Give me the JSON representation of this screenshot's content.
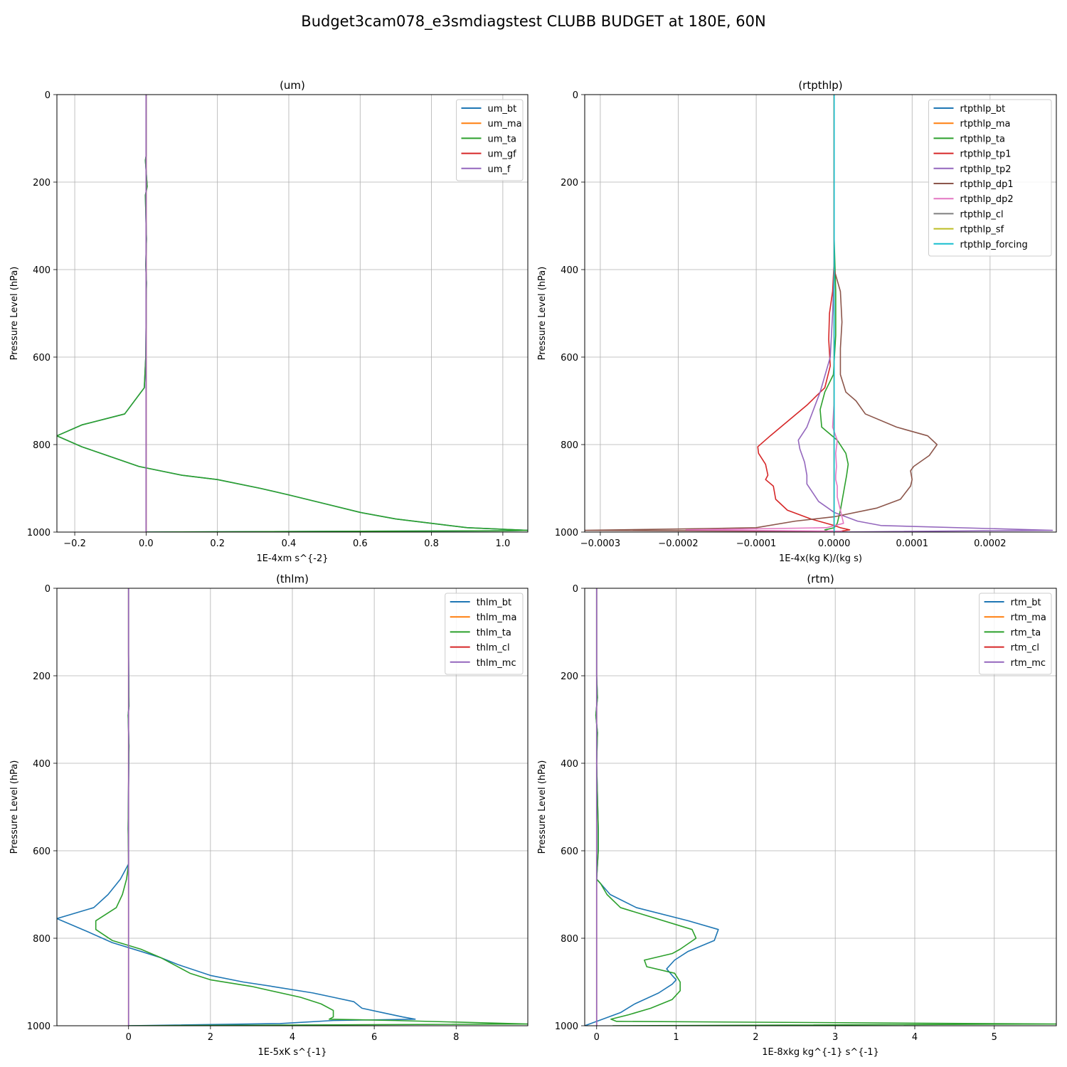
{
  "suptitle": "Budget3cam078_e3smdiagstest CLUBB BUDGET at 180E, 60N",
  "colors": {
    "C0": "#1f77b4",
    "C1": "#ff7f0e",
    "C2": "#2ca02c",
    "C3": "#d62728",
    "C4": "#9467bd",
    "C5": "#8c564b",
    "C6": "#e377c2",
    "C7": "#7f7f7f",
    "C8": "#bcbd22",
    "C9": "#17becf"
  },
  "chart_data": [
    {
      "type": "line",
      "title": "(um)",
      "xlabel": "1E-4xm s^{-2}",
      "ylabel": "Pressure Level (hPa)",
      "xlim": [
        -0.25,
        1.07
      ],
      "ylim": [
        1000,
        0
      ],
      "xticks": [
        -0.2,
        0.0,
        0.2,
        0.4,
        0.6,
        0.8,
        1.0
      ],
      "xtick_labels": [
        "−0.2",
        "0.0",
        "0.2",
        "0.4",
        "0.6",
        "0.8",
        "1.0"
      ],
      "yticks": [
        0,
        200,
        400,
        600,
        800,
        1000
      ],
      "grid": true,
      "legend": "upper right",
      "series": [
        {
          "name": "um_bt",
          "color": "C0",
          "x": [
            0,
            0,
            -0.002,
            0.003,
            -0.002,
            0,
            0.001,
            -0.001,
            0.001,
            0,
            0,
            -0.001,
            -0.005,
            -0.06,
            -0.18,
            -0.25,
            -0.18,
            -0.02,
            0.1,
            0.2,
            0.32,
            0.4,
            0.5,
            0.6,
            0.7,
            0.8,
            0.9,
            1.07,
            1.0,
            0.3,
            0
          ],
          "y": [
            0,
            140,
            150,
            210,
            230,
            300,
            330,
            390,
            430,
            470,
            520,
            600,
            670,
            730,
            755,
            780,
            805,
            850,
            870,
            880,
            900,
            915,
            935,
            955,
            970,
            980,
            990,
            996,
            997,
            999,
            1000
          ]
        },
        {
          "name": "um_ma",
          "color": "C1",
          "x": [
            0,
            0
          ],
          "y": [
            0,
            1000
          ]
        },
        {
          "name": "um_ta",
          "color": "C2",
          "x": [
            0,
            0,
            -0.002,
            0.003,
            -0.002,
            0,
            0.001,
            -0.001,
            0.001,
            0,
            0,
            -0.001,
            -0.005,
            -0.06,
            -0.18,
            -0.25,
            -0.18,
            -0.02,
            0.1,
            0.2,
            0.32,
            0.4,
            0.5,
            0.6,
            0.7,
            0.8,
            0.9,
            1.07,
            1.0,
            0.3,
            0
          ],
          "y": [
            0,
            140,
            150,
            210,
            230,
            300,
            330,
            390,
            430,
            470,
            520,
            600,
            670,
            730,
            755,
            780,
            805,
            850,
            870,
            880,
            900,
            915,
            935,
            955,
            970,
            980,
            990,
            996,
            997,
            999,
            1000
          ]
        },
        {
          "name": "um_gf",
          "color": "C3",
          "x": [
            0,
            0
          ],
          "y": [
            0,
            1000
          ]
        },
        {
          "name": "um_f",
          "color": "C4",
          "x": [
            0,
            0
          ],
          "y": [
            0,
            1000
          ]
        }
      ]
    },
    {
      "type": "line",
      "title": "(rtpthlp)",
      "xlabel": "1E-4x(kg K)/(kg s)",
      "ylabel": "Pressure Level (hPa)",
      "xlim": [
        -0.00032,
        0.000285
      ],
      "ylim": [
        1000,
        0
      ],
      "xticks": [
        -0.0003,
        -0.0002,
        -0.0001,
        0.0,
        0.0001,
        0.0002
      ],
      "xtick_labels": [
        "−0.0003",
        "−0.0002",
        "−0.0001",
        "0.0000",
        "0.0001",
        "0.0002"
      ],
      "yticks": [
        0,
        200,
        400,
        600,
        800,
        1000
      ],
      "grid": true,
      "legend": "upper right",
      "series": [
        {
          "name": "rtpthlp_bt",
          "color": "C0",
          "x": [
            0,
            0
          ],
          "y": [
            0,
            1000
          ]
        },
        {
          "name": "rtpthlp_ma",
          "color": "C1",
          "x": [
            0,
            0
          ],
          "y": [
            0,
            1000
          ]
        },
        {
          "name": "rtpthlp_ta",
          "color": "C2",
          "x": [
            0,
            0,
            2e-06,
            2e-06,
            -1e-06,
            -1.2e-05,
            -1.8e-05,
            -1.6e-05,
            4e-06,
            1.5e-05,
            1.8e-05,
            1.6e-05,
            1.2e-05,
            8e-06,
            4e-06,
            0,
            -1.2e-05,
            -8e-06,
            0
          ],
          "y": [
            0,
            330,
            450,
            550,
            640,
            680,
            720,
            760,
            790,
            820,
            845,
            870,
            910,
            950,
            980,
            990,
            995,
            998,
            1000
          ]
        },
        {
          "name": "rtpthlp_tp1",
          "color": "C3",
          "x": [
            0,
            0,
            -2e-06,
            -6e-06,
            -7e-06,
            -5e-06,
            -1.2e-05,
            -3.5e-05,
            -8.2e-05,
            -9.8e-05,
            -9.7e-05,
            -8.8e-05,
            -8.5e-05,
            -8.8e-05,
            -7.8e-05,
            -7.5e-05,
            -6e-05,
            -3e-05,
            0,
            8e-06,
            2e-05,
            0
          ],
          "y": [
            0,
            380,
            450,
            500,
            560,
            620,
            670,
            710,
            780,
            805,
            820,
            845,
            870,
            880,
            895,
            925,
            950,
            970,
            985,
            990,
            995,
            1000
          ]
        },
        {
          "name": "rtpthlp_tp2",
          "color": "C4",
          "x": [
            0,
            0,
            -2e-06,
            -5e-06,
            -1.8e-05,
            -3.5e-05,
            -4.6e-05,
            -4.4e-05,
            -3.8e-05,
            -3.5e-05,
            -3.5e-05,
            -2e-05,
            0,
            3e-05,
            6e-05,
            0.00028,
            0.00012,
            0
          ],
          "y": [
            0,
            400,
            500,
            600,
            680,
            760,
            790,
            810,
            840,
            870,
            890,
            930,
            955,
            975,
            985,
            996,
            998,
            1000
          ]
        },
        {
          "name": "rtpthlp_dp1",
          "color": "C5",
          "x": [
            0,
            0,
            8e-06,
            1e-05,
            8e-06,
            8e-06,
            1.5e-05,
            2.8e-05,
            4e-05,
            8e-05,
            0.00012,
            0.000132,
            0.000122,
            0.000102,
            9.8e-05,
            0.0001,
            9.8e-05,
            8.5e-05,
            5.5e-05,
            0,
            -5e-05,
            -0.0001,
            -0.0002,
            -0.00032,
            -8e-05,
            0
          ],
          "y": [
            0,
            400,
            450,
            520,
            580,
            640,
            680,
            700,
            730,
            760,
            780,
            800,
            825,
            850,
            860,
            880,
            895,
            925,
            945,
            965,
            975,
            990,
            993,
            996,
            998,
            1000
          ]
        },
        {
          "name": "rtpthlp_dp2",
          "color": "C6",
          "x": [
            0,
            0,
            -2e-06,
            4e-06,
            2e-06,
            3e-06,
            2e-06,
            2e-06,
            4e-06,
            4e-06,
            1.2e-05,
            -1e-05,
            -0.00019,
            1e-05,
            0
          ],
          "y": [
            0,
            700,
            760,
            790,
            820,
            850,
            870,
            880,
            895,
            920,
            980,
            990,
            995,
            998,
            1000
          ]
        },
        {
          "name": "rtpthlp_cl",
          "color": "C7",
          "x": [
            0,
            0
          ],
          "y": [
            0,
            1000
          ]
        },
        {
          "name": "rtpthlp_sf",
          "color": "C8",
          "x": [
            0,
            0
          ],
          "y": [
            0,
            1000
          ]
        },
        {
          "name": "rtpthlp_forcing",
          "color": "C9",
          "x": [
            0,
            0
          ],
          "y": [
            0,
            1000
          ]
        }
      ]
    },
    {
      "type": "line",
      "title": "(thlm)",
      "xlabel": "1E-5xK s^{-1}",
      "ylabel": "Pressure Level (hPa)",
      "xlim": [
        -1.75,
        9.75
      ],
      "ylim": [
        1000,
        0
      ],
      "xticks": [
        0,
        2,
        4,
        6,
        8
      ],
      "xtick_labels": [
        "0",
        "2",
        "4",
        "6",
        "8"
      ],
      "yticks": [
        0,
        200,
        400,
        600,
        800,
        1000
      ],
      "grid": true,
      "legend": "upper right",
      "series": [
        {
          "name": "thlm_bt",
          "color": "C0",
          "x": [
            0,
            0,
            0.01,
            -0.01,
            0.01,
            0,
            -0.01,
            0,
            0,
            -0.2,
            -0.5,
            -0.85,
            -1.75,
            -1.0,
            -0.4,
            0.3,
            0.8,
            1.2,
            2.0,
            2.8,
            3.5,
            4.5,
            5.0,
            5.5,
            5.7,
            6.2,
            6.7,
            7.0,
            5.0,
            3.7,
            0
          ],
          "y": [
            0,
            150,
            270,
            290,
            360,
            450,
            550,
            600,
            630,
            665,
            700,
            730,
            755,
            785,
            810,
            830,
            845,
            860,
            885,
            900,
            910,
            925,
            935,
            945,
            960,
            970,
            980,
            985,
            988,
            995,
            1000
          ]
        },
        {
          "name": "thlm_ma",
          "color": "C1",
          "x": [
            0,
            0
          ],
          "y": [
            0,
            1000
          ]
        },
        {
          "name": "thlm_ta",
          "color": "C2",
          "x": [
            0,
            0,
            0.01,
            -0.01,
            0.01,
            0,
            -0.01,
            0,
            -0.05,
            -0.15,
            -0.3,
            -0.8,
            -0.8,
            -0.4,
            0.3,
            0.8,
            1.5,
            2.0,
            3.0,
            4.2,
            4.7,
            5.0,
            5.0,
            4.9,
            6.5,
            9.75,
            0
          ],
          "y": [
            0,
            150,
            270,
            290,
            360,
            450,
            550,
            630,
            665,
            700,
            730,
            760,
            780,
            805,
            825,
            845,
            880,
            895,
            910,
            935,
            950,
            965,
            980,
            985,
            988,
            996,
            1000
          ]
        },
        {
          "name": "thlm_cl",
          "color": "C3",
          "x": [
            0,
            0
          ],
          "y": [
            0,
            1000
          ]
        },
        {
          "name": "thlm_mc",
          "color": "C4",
          "x": [
            0,
            0
          ],
          "y": [
            0,
            1000
          ]
        }
      ]
    },
    {
      "type": "line",
      "title": "(rtm)",
      "xlabel": "1E-8xkg kg^{-1} s^{-1}",
      "ylabel": "Pressure Level (hPa)",
      "xlim": [
        -0.15,
        5.78
      ],
      "ylim": [
        1000,
        0
      ],
      "xticks": [
        0,
        1,
        2,
        3,
        4,
        5
      ],
      "xtick_labels": [
        "0",
        "1",
        "2",
        "3",
        "4",
        "5"
      ],
      "yticks": [
        0,
        200,
        400,
        600,
        800,
        1000
      ],
      "grid": true,
      "legend": "upper right",
      "series": [
        {
          "name": "rtm_bt",
          "color": "C0",
          "x": [
            0,
            0,
            0.01,
            -0.01,
            0.01,
            0,
            0.02,
            0.02,
            0,
            0.05,
            0.17,
            0.5,
            1.15,
            1.53,
            1.48,
            1.15,
            0.98,
            0.88,
            0.95,
            1.0,
            0.95,
            0.78,
            0.48,
            0.3,
            0,
            -0.15
          ],
          "y": [
            0,
            200,
            250,
            290,
            330,
            400,
            550,
            600,
            665,
            675,
            700,
            730,
            760,
            780,
            805,
            830,
            850,
            870,
            885,
            895,
            905,
            925,
            950,
            970,
            990,
            1000
          ]
        },
        {
          "name": "rtm_ma",
          "color": "C1",
          "x": [
            0,
            0
          ],
          "y": [
            0,
            1000
          ]
        },
        {
          "name": "rtm_ta",
          "color": "C2",
          "x": [
            0,
            0,
            0.01,
            -0.01,
            0.01,
            0,
            0.02,
            0.02,
            0,
            0.05,
            0.13,
            0.3,
            1.2,
            1.25,
            1.05,
            0.95,
            0.6,
            0.63,
            0.98,
            1.05,
            1.05,
            0.95,
            0.68,
            0.4,
            0.18,
            0.25,
            5.78,
            0.2
          ],
          "y": [
            0,
            200,
            250,
            290,
            330,
            400,
            550,
            600,
            665,
            675,
            700,
            730,
            780,
            800,
            825,
            835,
            850,
            865,
            880,
            900,
            920,
            940,
            960,
            975,
            985,
            990,
            996,
            1000
          ]
        },
        {
          "name": "rtm_cl",
          "color": "C3",
          "x": [
            0,
            0
          ],
          "y": [
            0,
            1000
          ]
        },
        {
          "name": "rtm_mc",
          "color": "C4",
          "x": [
            0,
            0
          ],
          "y": [
            0,
            1000
          ]
        }
      ]
    }
  ]
}
